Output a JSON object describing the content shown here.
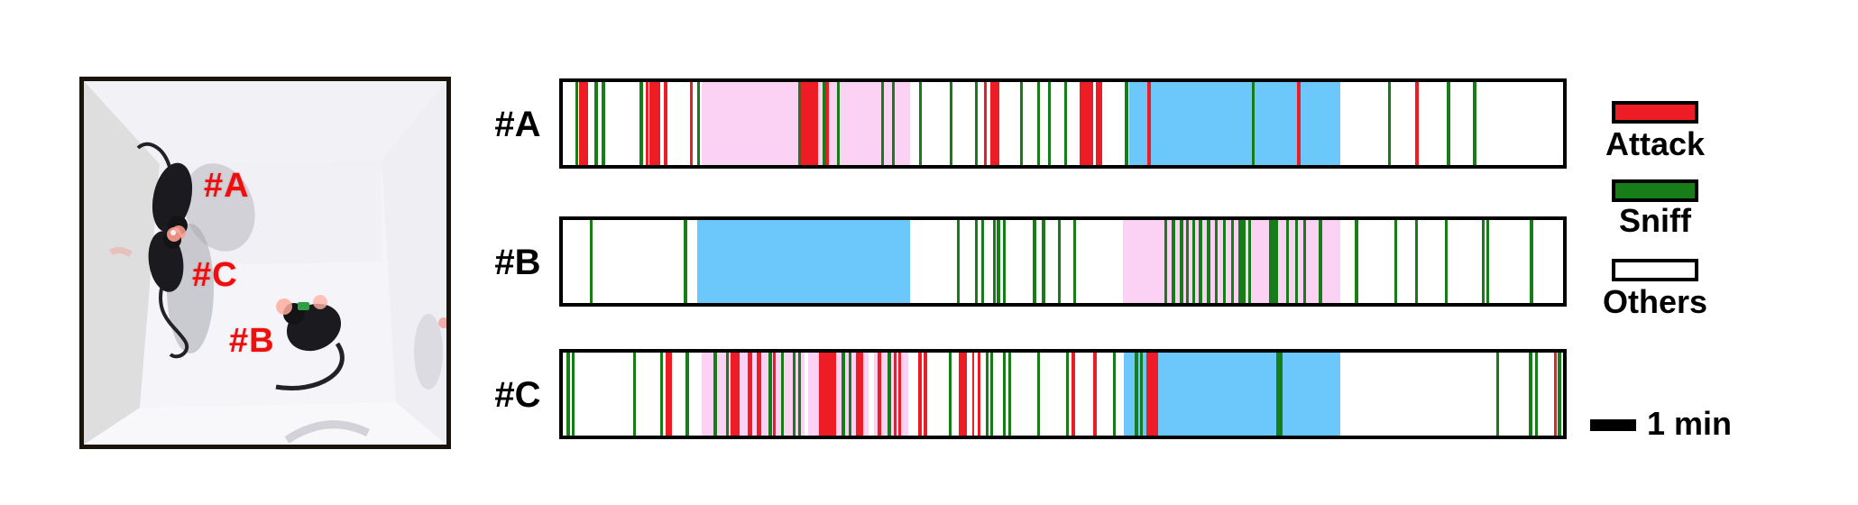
{
  "figure": {
    "colors": {
      "attack": "#ee1c24",
      "sniff": "#177d18",
      "others": "#ffffff",
      "region_pink": "#fbd2f4",
      "region_blue": "#6cc8fa",
      "label_red": "#f20d0d"
    },
    "photo": {
      "description": "top-down video frame of three black mice in a white open-field box",
      "labels": [
        {
          "text": "#A"
        },
        {
          "text": "#C"
        },
        {
          "text": "#B"
        }
      ]
    },
    "legend": {
      "items": [
        {
          "label": "Attack",
          "color": "#ee1c24"
        },
        {
          "label": "Sniff",
          "color": "#177d18"
        },
        {
          "label": "Others",
          "color": "#ffffff"
        }
      ],
      "scale": {
        "label": "1 min"
      }
    },
    "chart_data": {
      "type": "bar",
      "subtype": "ethogram_timeline",
      "orientation": "horizontal",
      "x_axis": "time (session, left to right); scale bar = 1 min ≈ 4.5% of track",
      "event_format": "[type a=attack s=sniff o=others, start_pct, width_pct(optional)]",
      "region_format": "[start_pct, end_pct, color_key]",
      "legend_entries": [
        "Attack",
        "Sniff",
        "Others"
      ],
      "rows": [
        {
          "id": "#A",
          "regions": [
            [
              13.9,
              34.7,
              "region_pink"
            ],
            [
              56.6,
              77.7,
              "region_blue"
            ]
          ],
          "events": [
            [
              "s",
              1.25
            ],
            [
              "a",
              1.6,
              0.9
            ],
            [
              "s",
              3.2
            ],
            [
              "s",
              3.9
            ],
            [
              "s",
              7.7
            ],
            [
              "a",
              8.3,
              0.3
            ],
            [
              "a",
              8.7,
              1.0
            ],
            [
              "a",
              10.1,
              0.4
            ],
            [
              "a",
              12.7,
              0.3
            ],
            [
              "s",
              13.4
            ],
            [
              "s",
              23.5
            ],
            [
              "a",
              23.8,
              1.7
            ],
            [
              "s",
              26.0
            ],
            [
              "a",
              26.3,
              0.3
            ],
            [
              "s",
              27.4
            ],
            [
              "s",
              31.8
            ],
            [
              "s",
              32.9
            ],
            [
              "s",
              35.6
            ],
            [
              "s",
              38.7
            ],
            [
              "s",
              41.2
            ],
            [
              "a",
              42.1,
              0.3
            ],
            [
              "a",
              42.7,
              0.9
            ],
            [
              "s",
              45.7
            ],
            [
              "s",
              47.4
            ],
            [
              "s",
              48.5
            ],
            [
              "s",
              50.1
            ],
            [
              "a",
              51.7,
              1.3
            ],
            [
              "a",
              53.3,
              0.6
            ],
            [
              "s",
              56.2
            ],
            [
              "a",
              58.4,
              0.35
            ],
            [
              "s",
              68.9
            ],
            [
              "a",
              73.4,
              0.35
            ],
            [
              "s",
              82.5
            ],
            [
              "a",
              85.2,
              0.35
            ],
            [
              "s",
              88.4
            ],
            [
              "s",
              91.0
            ]
          ]
        },
        {
          "id": "#B",
          "regions": [
            [
              13.4,
              34.7,
              "region_blue"
            ],
            [
              56.0,
              77.7,
              "region_pink"
            ]
          ],
          "events": [
            [
              "s",
              2.7
            ],
            [
              "s",
              12.1
            ],
            [
              "s",
              39.4
            ],
            [
              "s",
              41.2
            ],
            [
              "s",
              41.8
            ],
            [
              "s",
              43.0
            ],
            [
              "s",
              43.4
            ],
            [
              "s",
              44.0
            ],
            [
              "s",
              47.0
            ],
            [
              "s",
              47.9
            ],
            [
              "s",
              49.5
            ],
            [
              "s",
              51.0
            ],
            [
              "s",
              60.1
            ],
            [
              "s",
              60.9
            ],
            [
              "s",
              61.7
            ],
            [
              "s",
              62.3
            ],
            [
              "s",
              62.9
            ],
            [
              "s",
              63.6
            ],
            [
              "s",
              64.4
            ],
            [
              "s",
              65.2
            ],
            [
              "s",
              66.0
            ],
            [
              "s",
              66.8
            ],
            [
              "s",
              67.5,
              0.8
            ],
            [
              "s",
              68.5
            ],
            [
              "s",
              70.6,
              0.95
            ],
            [
              "s",
              72.3
            ],
            [
              "s",
              73.2
            ],
            [
              "s",
              74.0
            ],
            [
              "s",
              75.6
            ],
            [
              "s",
              79.2
            ],
            [
              "s",
              83.1
            ],
            [
              "s",
              85.2
            ],
            [
              "s",
              88.2
            ],
            [
              "s",
              91.9
            ],
            [
              "s",
              92.3
            ],
            [
              "s",
              96.7
            ]
          ]
        },
        {
          "id": "#C",
          "regions": [
            [
              13.9,
              34.5,
              "region_pink"
            ],
            [
              56.1,
              77.7,
              "region_blue"
            ]
          ],
          "events": [
            [
              "o",
              24.2,
              0.35
            ],
            [
              "o",
              30.6,
              0.5
            ],
            [
              "s",
              0.4
            ],
            [
              "s",
              0.9
            ],
            [
              "s",
              7.0
            ],
            [
              "s",
              9.7
            ],
            [
              "a",
              10.3,
              0.6
            ],
            [
              "s",
              12.3
            ],
            [
              "s",
              15.1
            ],
            [
              "s",
              16.3
            ],
            [
              "a",
              16.8,
              0.9
            ],
            [
              "a",
              18.5,
              0.45
            ],
            [
              "a",
              19.4,
              0.45
            ],
            [
              "s",
              20.6
            ],
            [
              "a",
              21.0,
              0.3
            ],
            [
              "s",
              21.8
            ],
            [
              "s",
              23.0
            ],
            [
              "s",
              23.5
            ],
            [
              "a",
              25.6,
              1.7
            ],
            [
              "s",
              27.9
            ],
            [
              "s",
              28.6
            ],
            [
              "a",
              29.3,
              0.35
            ],
            [
              "a",
              29.7,
              0.35
            ],
            [
              "a",
              31.5,
              0.3
            ],
            [
              "s",
              32.5
            ],
            [
              "a",
              33.1,
              0.3
            ],
            [
              "a",
              33.5,
              0.3
            ],
            [
              "a",
              35.5,
              0.35
            ],
            [
              "a",
              36.1,
              0.3
            ],
            [
              "s",
              38.6
            ],
            [
              "a",
              39.6,
              0.25
            ],
            [
              "a",
              39.8,
              0.6
            ],
            [
              "a",
              40.9,
              0.25
            ],
            [
              "a",
              41.5,
              0.25
            ],
            [
              "s",
              42.3
            ],
            [
              "s",
              42.7
            ],
            [
              "s",
              44.0
            ],
            [
              "s",
              44.5
            ],
            [
              "s",
              47.4
            ],
            [
              "s",
              50.3
            ],
            [
              "a",
              50.9,
              0.3
            ],
            [
              "a",
              53.0,
              0.35
            ],
            [
              "s",
              55.0
            ],
            [
              "s",
              57.2
            ],
            [
              "s",
              57.7
            ],
            [
              "a",
              58.3,
              1.2
            ],
            [
              "s",
              71.3,
              0.65
            ],
            [
              "s",
              93.3
            ],
            [
              "s",
              96.6
            ],
            [
              "s",
              97.2
            ],
            [
              "a",
              99.1,
              0.3
            ],
            [
              "s",
              99.5
            ]
          ]
        }
      ]
    }
  }
}
